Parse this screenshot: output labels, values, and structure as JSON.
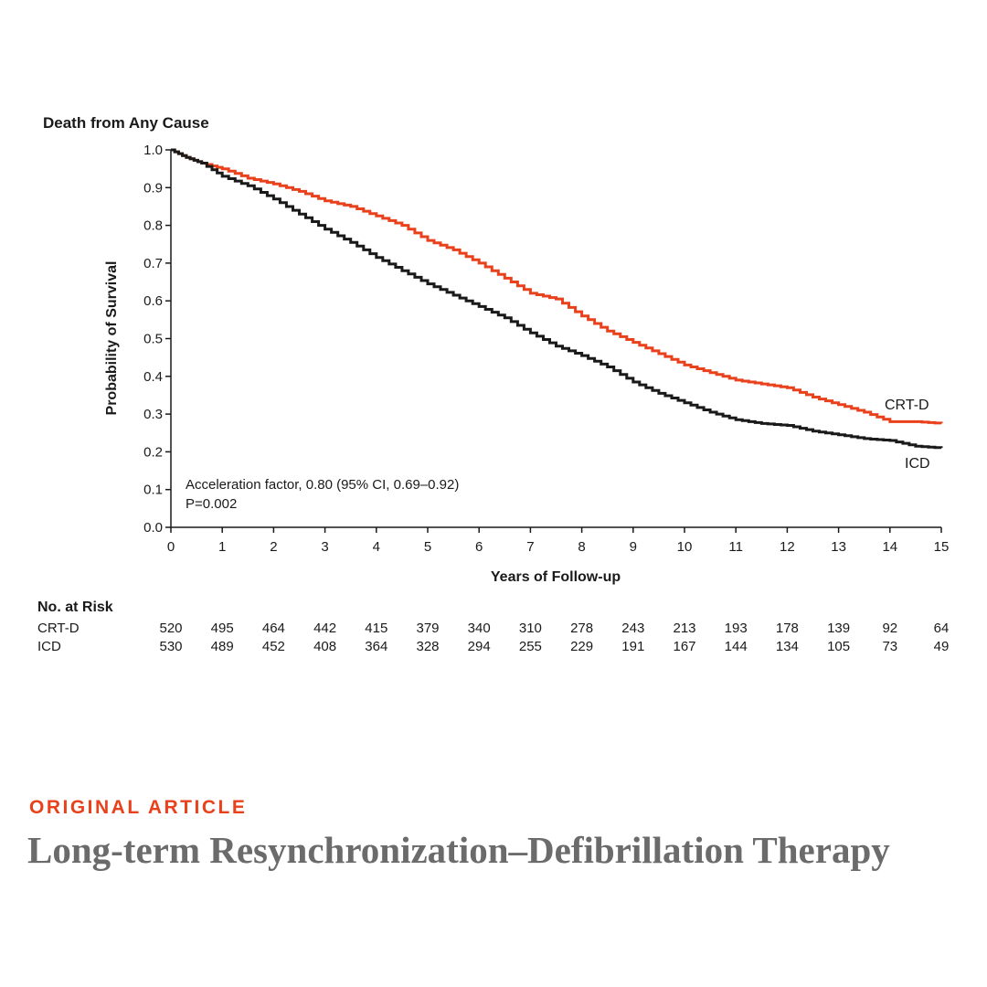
{
  "chart_data": {
    "type": "line",
    "title": "Death from Any Cause",
    "xlabel": "Years of Follow-up",
    "ylabel": "Probability of Survival",
    "xlim": [
      0,
      15
    ],
    "ylim": [
      0.0,
      1.0
    ],
    "x_ticks": [
      0,
      1,
      2,
      3,
      4,
      5,
      6,
      7,
      8,
      9,
      10,
      11,
      12,
      13,
      14,
      15
    ],
    "y_ticks": [
      "0.0",
      "0.1",
      "0.2",
      "0.3",
      "0.4",
      "0.5",
      "0.6",
      "0.7",
      "0.8",
      "0.9",
      "1.0"
    ],
    "grid": false,
    "series": [
      {
        "name": "CRT-D",
        "color": "#e8411c",
        "points": [
          [
            0,
            1.0
          ],
          [
            0.3,
            0.98
          ],
          [
            0.6,
            0.965
          ],
          [
            1,
            0.95
          ],
          [
            1.5,
            0.925
          ],
          [
            2,
            0.91
          ],
          [
            2.5,
            0.89
          ],
          [
            3,
            0.865
          ],
          [
            3.5,
            0.85
          ],
          [
            4,
            0.825
          ],
          [
            4.5,
            0.8
          ],
          [
            5,
            0.76
          ],
          [
            5.5,
            0.735
          ],
          [
            6,
            0.7
          ],
          [
            6.5,
            0.66
          ],
          [
            7,
            0.62
          ],
          [
            7.5,
            0.605
          ],
          [
            8,
            0.56
          ],
          [
            8.5,
            0.52
          ],
          [
            9,
            0.49
          ],
          [
            9.5,
            0.46
          ],
          [
            10,
            0.43
          ],
          [
            10.5,
            0.41
          ],
          [
            11,
            0.39
          ],
          [
            11.5,
            0.38
          ],
          [
            12,
            0.37
          ],
          [
            12.5,
            0.345
          ],
          [
            13,
            0.325
          ],
          [
            13.5,
            0.305
          ],
          [
            14,
            0.28
          ],
          [
            14.5,
            0.28
          ],
          [
            15,
            0.275
          ]
        ]
      },
      {
        "name": "ICD",
        "color": "#1a1a1a",
        "points": [
          [
            0,
            1.0
          ],
          [
            0.3,
            0.98
          ],
          [
            0.6,
            0.965
          ],
          [
            1,
            0.93
          ],
          [
            1.5,
            0.905
          ],
          [
            2,
            0.87
          ],
          [
            2.5,
            0.83
          ],
          [
            3,
            0.79
          ],
          [
            3.5,
            0.755
          ],
          [
            4,
            0.715
          ],
          [
            4.5,
            0.68
          ],
          [
            5,
            0.645
          ],
          [
            5.5,
            0.615
          ],
          [
            6,
            0.585
          ],
          [
            6.5,
            0.555
          ],
          [
            7,
            0.515
          ],
          [
            7.5,
            0.48
          ],
          [
            8,
            0.455
          ],
          [
            8.5,
            0.425
          ],
          [
            9,
            0.385
          ],
          [
            9.5,
            0.355
          ],
          [
            10,
            0.33
          ],
          [
            10.5,
            0.305
          ],
          [
            11,
            0.285
          ],
          [
            11.5,
            0.275
          ],
          [
            12,
            0.27
          ],
          [
            12.5,
            0.255
          ],
          [
            13,
            0.245
          ],
          [
            13.5,
            0.235
          ],
          [
            14,
            0.23
          ],
          [
            14.5,
            0.215
          ],
          [
            15,
            0.21
          ]
        ]
      }
    ],
    "annotations": [
      "Acceleration factor, 0.80 (95% CI, 0.69–0.92)",
      "P=0.002"
    ],
    "risk_table": {
      "title": "No. at Risk",
      "rows": [
        {
          "name": "CRT-D",
          "values": [
            520,
            495,
            464,
            442,
            415,
            379,
            340,
            310,
            278,
            243,
            213,
            193,
            178,
            139,
            92,
            64
          ]
        },
        {
          "name": "ICD",
          "values": [
            530,
            489,
            452,
            408,
            364,
            328,
            294,
            255,
            229,
            191,
            167,
            144,
            134,
            105,
            73,
            49
          ]
        }
      ]
    }
  },
  "article": {
    "kicker": "ORIGINAL ARTICLE",
    "title": "Long-term Resynchronization–Defibrillation Therapy"
  }
}
